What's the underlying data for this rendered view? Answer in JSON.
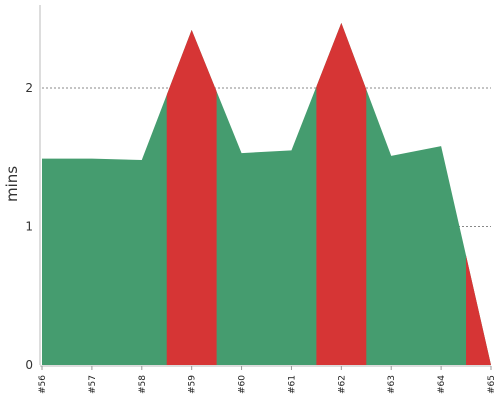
{
  "chart_data": {
    "type": "area",
    "ylabel": "mins",
    "xlabel": "",
    "x": [
      "#56",
      "#57",
      "#58",
      "#59",
      "#60",
      "#61",
      "#62",
      "#63",
      "#64",
      "#65"
    ],
    "series": [
      {
        "values": [
          1.49,
          1.49,
          1.48,
          2.42,
          1.53,
          1.55,
          2.47,
          1.51,
          1.58,
          0.0
        ],
        "color": "#459c6f"
      }
    ],
    "highlight_color": "#d63535",
    "highlight_bands": [
      [
        "#58.5",
        "#59.5"
      ],
      [
        "#61.5",
        "#62.5"
      ],
      [
        "#64.5",
        "#65"
      ]
    ],
    "yticks": [
      0,
      1,
      2
    ],
    "ylim": [
      0,
      2.6
    ],
    "grid": {
      "horizontal": true,
      "style": "dotted"
    }
  }
}
